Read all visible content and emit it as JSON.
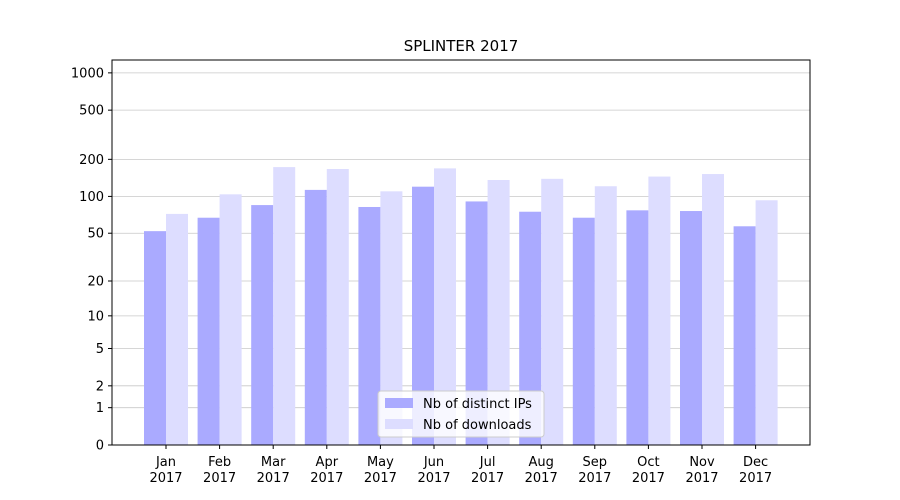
{
  "chart_data": {
    "type": "bar",
    "title": "SPLINTER 2017",
    "categories": [
      "Jan 2017",
      "Feb 2017",
      "Mar 2017",
      "Apr 2017",
      "May 2017",
      "Jun 2017",
      "Jul 2017",
      "Aug 2017",
      "Sep 2017",
      "Oct 2017",
      "Nov 2017",
      "Dec 2017"
    ],
    "series": [
      {
        "name": "Nb of distinct IPs",
        "color": "#aaaaff",
        "values": [
          52,
          67,
          85,
          113,
          82,
          120,
          91,
          75,
          67,
          77,
          76,
          57
        ]
      },
      {
        "name": "Nb of downloads",
        "color": "#ddddff",
        "values": [
          72,
          104,
          173,
          167,
          110,
          169,
          136,
          139,
          121,
          145,
          152,
          93
        ]
      }
    ],
    "yscale": "log1p",
    "ylim": [
      0,
      1270
    ],
    "yticks": [
      0,
      1,
      2,
      5,
      10,
      20,
      50,
      100,
      200,
      500,
      1000
    ],
    "grid": true,
    "legend": "lower center"
  }
}
